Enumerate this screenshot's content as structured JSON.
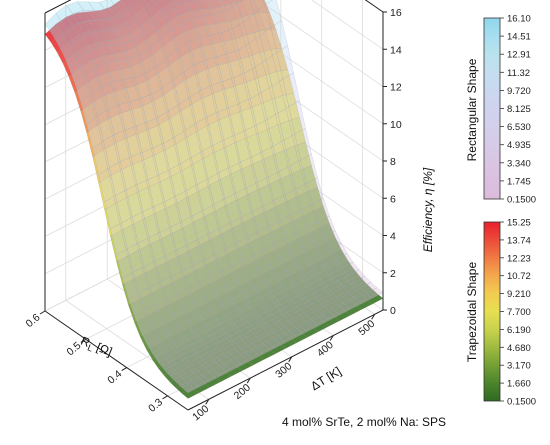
{
  "chart_data": {
    "type": "surface",
    "caption": "4 mol% SrTe, 2 mol% Na: SPS",
    "x_axis": {
      "label_main": "R",
      "label_sub": "L",
      "label_tail": " [Ω]",
      "ticks": [
        "0.3",
        "0.4",
        "0.5",
        "0.6"
      ],
      "range": [
        0.25,
        0.6
      ]
    },
    "y_axis": {
      "label": "ΔT [K]",
      "ticks": [
        "100",
        "200",
        "300",
        "400",
        "500"
      ],
      "range": [
        50,
        520
      ]
    },
    "z_axis": {
      "label": "Efficiency, η [%]",
      "ticks": [
        "0",
        "2",
        "4",
        "6",
        "8",
        "10",
        "12",
        "14",
        "16"
      ],
      "range": [
        0,
        16
      ]
    },
    "series": [
      {
        "name": "Rectangular Shape",
        "max_efficiency": 16.1
      },
      {
        "name": "Trapezoidal Shape",
        "max_efficiency": 15.25
      }
    ],
    "colorbars": [
      {
        "title": "Rectangular Shape",
        "ticks": [
          "16.10",
          "14.51",
          "12.91",
          "11.32",
          "9.720",
          "8.125",
          "6.530",
          "4.935",
          "3.340",
          "1.745",
          "0.1500"
        ],
        "colors": [
          "#90d6ee",
          "#a6deef",
          "#b9e2ee",
          "#c4def0",
          "#cad8ef",
          "#cfd3ee",
          "#d3cfec",
          "#d6cbe8",
          "#d9c5e3",
          "#dbc0df",
          "#dcbcdc"
        ]
      },
      {
        "title": "Trapezoidal Shape",
        "ticks": [
          "15.25",
          "13.74",
          "12.23",
          "10.72",
          "9.210",
          "7.700",
          "6.190",
          "4.680",
          "3.170",
          "1.660",
          "0.1500"
        ],
        "colors": [
          "#e8202c",
          "#ec4b3a",
          "#f07a44",
          "#f4a94c",
          "#f2cc50",
          "#e6df52",
          "#c9d24c",
          "#a0bb40",
          "#74a035",
          "#4c842c",
          "#2f6a22"
        ]
      }
    ]
  }
}
